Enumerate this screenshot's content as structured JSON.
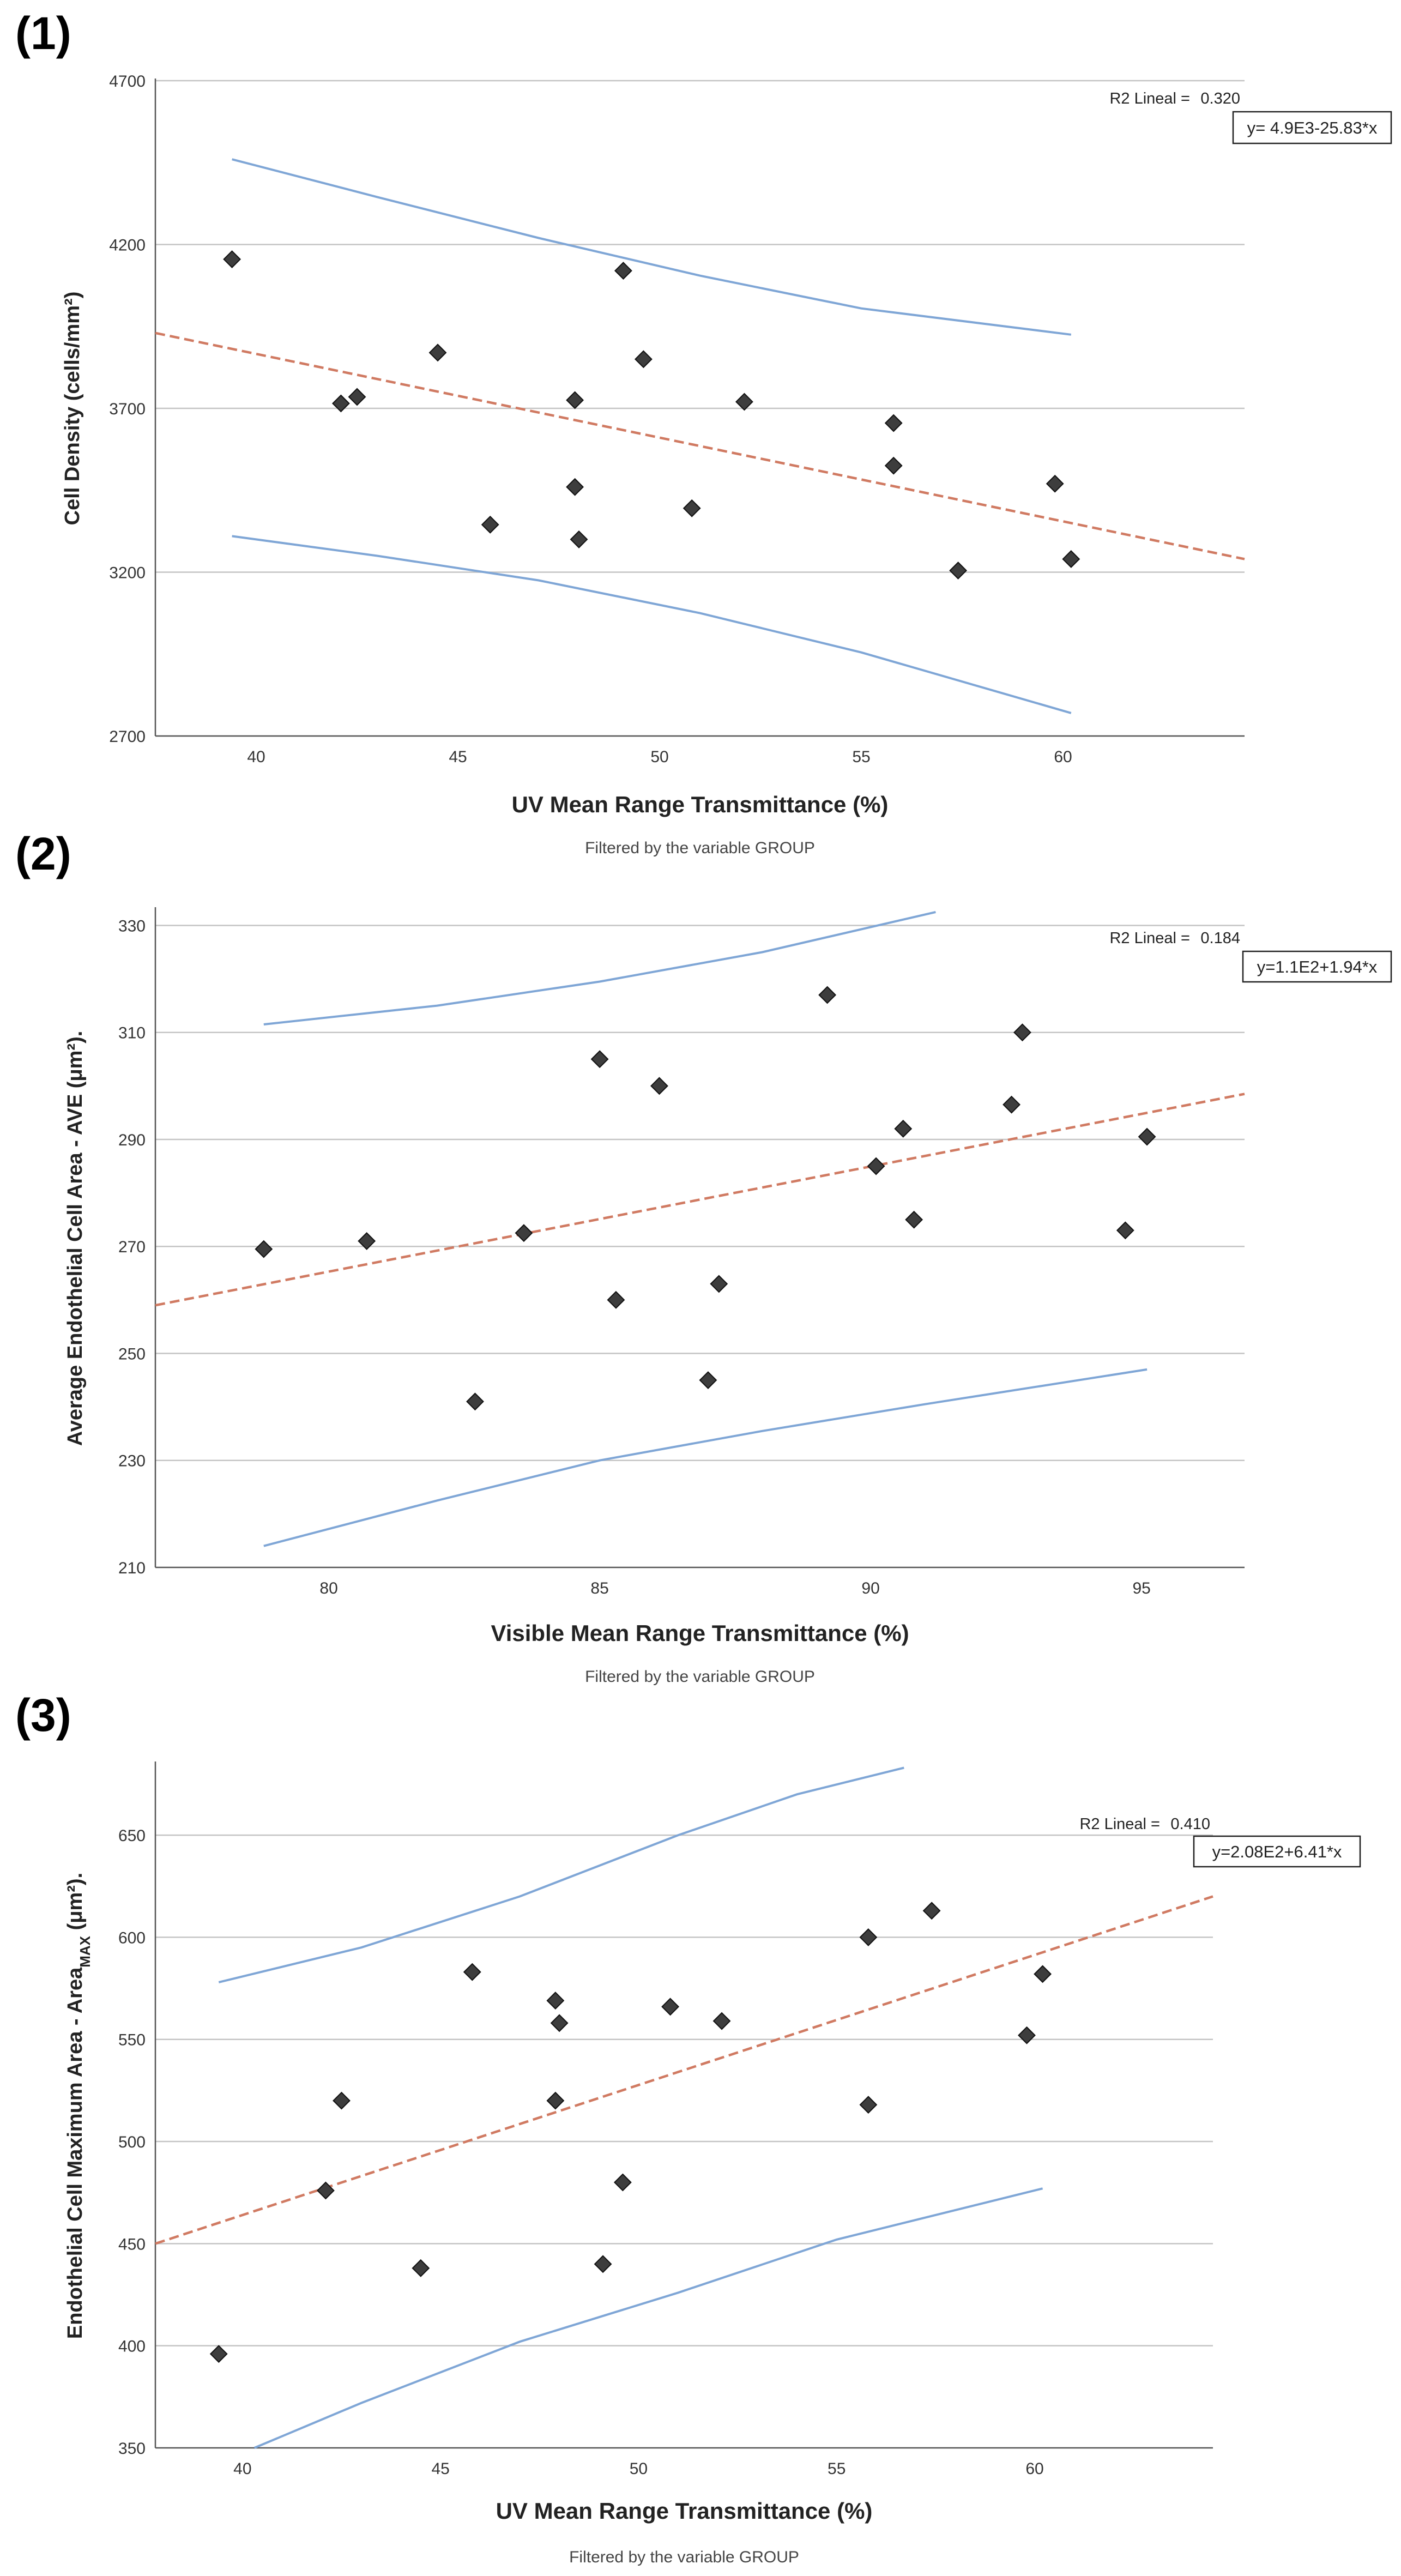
{
  "chart_data": [
    {
      "type": "scatter",
      "panel_label": "(1)",
      "xlabel": "UV Mean Range Transmittance (%)",
      "ylabel": "Cell Density (cells/mm²)",
      "note": "Filtered by the variable GROUP",
      "r2_label": "R2 Lineal =",
      "r2_value": "0.320",
      "equation": "y= 4.9E3-25.83*x",
      "xlim": [
        37.5,
        64.5
      ],
      "ylim": [
        2700,
        4700
      ],
      "xticks": [
        40,
        45,
        50,
        55,
        60
      ],
      "yticks": [
        2700,
        3200,
        3700,
        4200,
        4700
      ],
      "grid": "horizontal",
      "points": [
        [
          39.4,
          4155
        ],
        [
          42.1,
          3715
        ],
        [
          42.5,
          3735
        ],
        [
          44.5,
          3870
        ],
        [
          45.8,
          3345
        ],
        [
          47.9,
          3725
        ],
        [
          47.9,
          3460
        ],
        [
          48.0,
          3300
        ],
        [
          49.1,
          4120
        ],
        [
          49.6,
          3850
        ],
        [
          50.8,
          3395
        ],
        [
          52.1,
          3720
        ],
        [
          55.8,
          3655
        ],
        [
          55.8,
          3525
        ],
        [
          57.4,
          3205
        ],
        [
          59.8,
          3470
        ],
        [
          60.2,
          3240
        ]
      ],
      "fit_line": {
        "x": [
          37.5,
          64.5
        ],
        "y": [
          3930,
          3240
        ]
      },
      "ci_upper": {
        "x": [
          39.4,
          43.0,
          47.0,
          51.0,
          55.0,
          60.2
        ],
        "y": [
          4460,
          4345,
          4220,
          4105,
          4005,
          3925
        ]
      },
      "ci_lower": {
        "x": [
          39.4,
          43.0,
          47.0,
          51.0,
          55.0,
          60.2
        ],
        "y": [
          3310,
          3250,
          3175,
          3075,
          2955,
          2770
        ]
      },
      "colors": {
        "fit": "#d07a62",
        "ci": "#7fa6d6",
        "points": "#3d3d3d"
      }
    },
    {
      "type": "scatter",
      "panel_label": "(2)",
      "xlabel": "Visible Mean Range Transmittance (%)",
      "ylabel": "Average Endothelial Cell Area - AVE (μm²).",
      "note": "Filtered by the variable GROUP",
      "r2_label": "R2 Lineal =",
      "r2_value": "0.184",
      "equation": "y=1.1E2+1.94*x",
      "xlim": [
        76.8,
        96.9
      ],
      "ylim": [
        210,
        333
      ],
      "xticks": [
        80,
        85,
        90,
        95
      ],
      "yticks": [
        210,
        230,
        250,
        270,
        290,
        310,
        330
      ],
      "grid": "horizontal",
      "points": [
        [
          78.8,
          269.5
        ],
        [
          80.7,
          271
        ],
        [
          82.7,
          241
        ],
        [
          83.6,
          272.5
        ],
        [
          85.0,
          305
        ],
        [
          85.3,
          260
        ],
        [
          86.1,
          300
        ],
        [
          87.0,
          245
        ],
        [
          87.2,
          263
        ],
        [
          89.2,
          317
        ],
        [
          90.1,
          285
        ],
        [
          90.6,
          292
        ],
        [
          90.8,
          275
        ],
        [
          92.6,
          296.5
        ],
        [
          92.8,
          310
        ],
        [
          94.7,
          273
        ],
        [
          95.1,
          290.5
        ]
      ],
      "fit_line": {
        "x": [
          76.8,
          96.9
        ],
        "y": [
          259,
          298.5
        ]
      },
      "ci_upper": {
        "x": [
          78.8,
          82.0,
          85.0,
          88.0,
          91.2
        ],
        "y": [
          311.5,
          315,
          319.5,
          325,
          332.5
        ]
      },
      "ci_lower": {
        "x": [
          78.8,
          82.0,
          85.0,
          88.0,
          91.0,
          95.1
        ],
        "y": [
          214,
          222.5,
          230,
          235.5,
          240.5,
          247
        ]
      },
      "colors": {
        "fit": "#d07a62",
        "ci": "#7fa6d6",
        "points": "#3d3d3d"
      }
    },
    {
      "type": "scatter",
      "panel_label": "(3)",
      "xlabel": "UV Mean Range Transmittance (%)",
      "ylabel_main": "Endothelial Cell Maximum Area - Area",
      "ylabel_sub": "MAX",
      "ylabel_tail": " (μm²).",
      "note": "Filtered by the variable GROUP",
      "r2_label": "R2 Lineal =",
      "r2_value": "0.410",
      "equation": "y=2.08E2+6.41*x",
      "xlim": [
        37.8,
        64.5
      ],
      "ylim": [
        350,
        685
      ],
      "xticks": [
        40,
        45,
        50,
        55,
        60
      ],
      "yticks": [
        350,
        400,
        450,
        500,
        550,
        600,
        650
      ],
      "grid": "horizontal",
      "points": [
        [
          39.4,
          396
        ],
        [
          42.1,
          476
        ],
        [
          42.5,
          520
        ],
        [
          44.5,
          438
        ],
        [
          45.8,
          583
        ],
        [
          47.9,
          569
        ],
        [
          48.0,
          558
        ],
        [
          47.9,
          520
        ],
        [
          49.1,
          440
        ],
        [
          49.6,
          480
        ],
        [
          50.8,
          566
        ],
        [
          52.1,
          559
        ],
        [
          55.8,
          600
        ],
        [
          55.8,
          518
        ],
        [
          57.4,
          613
        ],
        [
          59.8,
          552
        ],
        [
          60.2,
          582
        ]
      ],
      "fit_line": {
        "x": [
          37.8,
          64.5
        ],
        "y": [
          450,
          620
        ]
      },
      "ci_upper": {
        "x": [
          39.4,
          43.0,
          47.0,
          51.0,
          54.0,
          56.7
        ],
        "y": [
          578,
          595,
          620,
          650,
          670,
          683
        ]
      },
      "ci_lower": {
        "x": [
          40.3,
          43.0,
          47.0,
          51.0,
          55.0,
          60.2
        ],
        "y": [
          350,
          372,
          402,
          426,
          452,
          477
        ]
      },
      "colors": {
        "fit": "#d07a62",
        "ci": "#7fa6d6",
        "points": "#3d3d3d"
      }
    }
  ]
}
